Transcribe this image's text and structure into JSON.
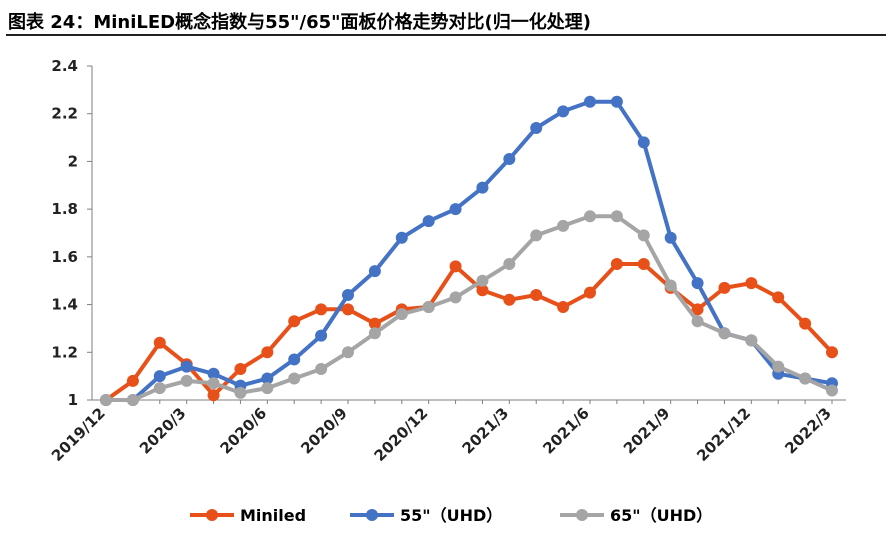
{
  "chart_data": {
    "type": "line",
    "title": "图表 24：MiniLED概念指数与55\"/65\"面板价格走势对比(归一化处理)",
    "ylim": [
      1,
      2.4
    ],
    "yticks": [
      "2.4",
      "2.2",
      "2",
      "1.8",
      "1.6",
      "1.4",
      "1.2",
      "1"
    ],
    "ytick_values": [
      2.4,
      2.2,
      2.0,
      1.8,
      1.6,
      1.4,
      1.2,
      1.0
    ],
    "x": [
      "2019/12",
      "2020/1",
      "2020/2",
      "2020/3",
      "2020/4",
      "2020/5",
      "2020/6",
      "2020/7",
      "2020/8",
      "2020/9",
      "2020/10",
      "2020/11",
      "2020/12",
      "2021/1",
      "2021/2",
      "2021/3",
      "2021/4",
      "2021/5",
      "2021/6",
      "2021/7",
      "2021/8",
      "2021/9",
      "2021/10",
      "2021/11",
      "2021/12",
      "2022/1",
      "2022/2",
      "2022/3"
    ],
    "xtick_labels": [
      {
        "index": 0,
        "label": "2019/12"
      },
      {
        "index": 3,
        "label": "2020/3"
      },
      {
        "index": 6,
        "label": "2020/6"
      },
      {
        "index": 9,
        "label": "2020/9"
      },
      {
        "index": 12,
        "label": "2020/12"
      },
      {
        "index": 15,
        "label": "2021/3"
      },
      {
        "index": 18,
        "label": "2021/6"
      },
      {
        "index": 21,
        "label": "2021/9"
      },
      {
        "index": 24,
        "label": "2021/12"
      },
      {
        "index": 27,
        "label": "2022/3"
      }
    ],
    "legend_position": "bottom",
    "series": [
      {
        "name": "Miniled",
        "color": "#E8501A",
        "values": [
          1.0,
          1.08,
          1.24,
          1.15,
          1.02,
          1.13,
          1.2,
          1.33,
          1.38,
          1.38,
          1.32,
          1.38,
          1.39,
          1.56,
          1.46,
          1.42,
          1.44,
          1.39,
          1.45,
          1.57,
          1.57,
          1.47,
          1.38,
          1.47,
          1.49,
          1.43,
          1.32,
          1.2
        ]
      },
      {
        "name": "55\"（UHD）",
        "color": "#4472C4",
        "values": [
          1.0,
          1.0,
          1.1,
          1.14,
          1.11,
          1.06,
          1.09,
          1.17,
          1.27,
          1.44,
          1.54,
          1.68,
          1.75,
          1.8,
          1.89,
          2.01,
          2.14,
          2.21,
          2.25,
          2.25,
          2.08,
          1.68,
          1.49,
          1.28,
          1.25,
          1.11,
          1.09,
          1.07
        ]
      },
      {
        "name": "65\"（UHD）",
        "color": "#A5A5A5",
        "values": [
          1.0,
          1.0,
          1.05,
          1.08,
          1.07,
          1.03,
          1.05,
          1.09,
          1.13,
          1.2,
          1.28,
          1.36,
          1.39,
          1.43,
          1.5,
          1.57,
          1.69,
          1.73,
          1.77,
          1.77,
          1.69,
          1.48,
          1.33,
          1.28,
          1.25,
          1.14,
          1.09,
          1.04
        ]
      }
    ]
  }
}
